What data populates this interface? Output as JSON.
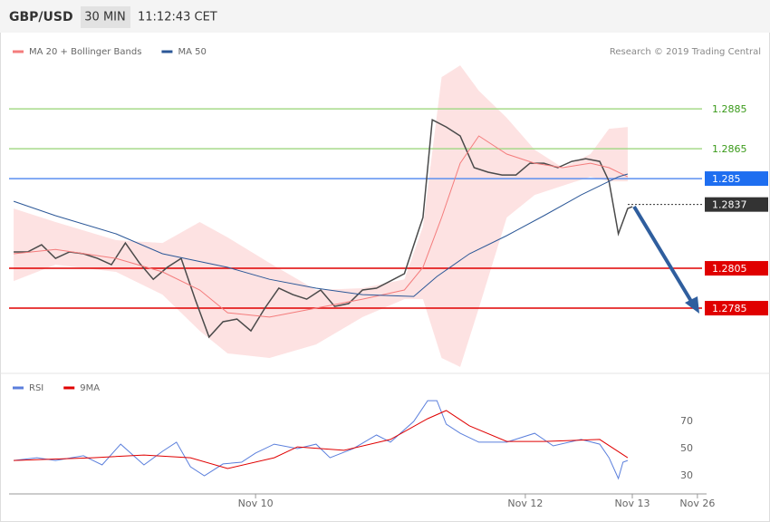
{
  "header": {
    "symbol": "GBP/USD",
    "timeframe": "30 MIN",
    "time": "11:12:43 CET"
  },
  "chart_data": [
    {
      "type": "line",
      "legend_position": "top-left",
      "credit": "Research © 2019 Trading Central",
      "xlim": [
        -1,
        148
      ],
      "ylim": [
        1.27532,
        1.29214
      ],
      "price": {
        "color": "#4a4a4a",
        "x": [
          0,
          3,
          6,
          9,
          12,
          15,
          18,
          21,
          24,
          27,
          30,
          33,
          36,
          39,
          42,
          45,
          48,
          51,
          54,
          57,
          60,
          63,
          66,
          69,
          72,
          75,
          78,
          81,
          84,
          87,
          88,
          90,
          93,
          96,
          99,
          102,
          105,
          108,
          111,
          114,
          117,
          120,
          123,
          126,
          128,
          130,
          132,
          133
        ],
        "values": [
          1.28132,
          1.28132,
          1.28168,
          1.281,
          1.28132,
          1.28123,
          1.281,
          1.28068,
          1.28177,
          1.28077,
          1.27995,
          1.28055,
          1.281,
          1.27895,
          1.27705,
          1.27782,
          1.27795,
          1.27736,
          1.2785,
          1.2795,
          1.27918,
          1.27895,
          1.27941,
          1.27859,
          1.27873,
          1.27941,
          1.2795,
          1.27986,
          1.28023,
          1.28236,
          1.28305,
          1.28795,
          1.28759,
          1.28714,
          1.28555,
          1.28532,
          1.28518,
          1.28518,
          1.28577,
          1.28577,
          1.28555,
          1.28586,
          1.286,
          1.28586,
          1.28486,
          1.28223,
          1.2835,
          1.28359
        ]
      },
      "series": [
        {
          "name": "MA 20 + Bollinger Bands",
          "color": "#f47c7c",
          "band_color": "#fde2e2",
          "x": [
            0,
            9,
            22,
            32,
            40,
            46,
            55,
            65,
            75,
            84,
            88,
            92,
            96,
            100,
            106,
            112,
            118,
            124,
            128,
            132
          ],
          "values": [
            1.28123,
            1.28145,
            1.281,
            1.28032,
            1.27941,
            1.27827,
            1.27805,
            1.2785,
            1.27895,
            1.27941,
            1.28055,
            1.28305,
            1.28577,
            1.28714,
            1.28623,
            1.28577,
            1.28555,
            1.28577,
            1.28555,
            1.28509
          ],
          "upper": [
            1.2835,
            1.28282,
            1.28191,
            1.28177,
            1.28282,
            1.28205,
            1.28077,
            1.27941,
            1.2795,
            1.27995,
            1.28259,
            1.29009,
            1.29068,
            1.28941,
            1.28805,
            1.28645,
            1.28555,
            1.28623,
            1.2875,
            1.28759
          ],
          "lower": [
            1.27986,
            1.28068,
            1.28032,
            1.27918,
            1.27736,
            1.27623,
            1.276,
            1.27668,
            1.27805,
            1.27895,
            1.27895,
            1.276,
            1.27555,
            1.2785,
            1.28305,
            1.28418,
            1.28464,
            1.28509,
            1.28486,
            1.28486
          ]
        },
        {
          "name": "MA 50",
          "color": "#2b5797",
          "x": [
            0,
            9,
            22,
            32,
            46,
            55,
            65,
            75,
            86,
            91,
            98,
            106,
            114,
            122,
            130,
            132
          ],
          "values": [
            1.28386,
            1.28314,
            1.28223,
            1.28123,
            1.28055,
            1.27995,
            1.2795,
            1.27918,
            1.27909,
            1.28009,
            1.28123,
            1.28214,
            1.28314,
            1.28418,
            1.28509,
            1.28523
          ]
        }
      ],
      "levels": [
        {
          "value": 1.2885,
          "color": "#a6d98a",
          "box": "#ffffff",
          "text_color": "#3a9a1a"
        },
        {
          "value": 1.2865,
          "color": "#a6d98a",
          "box": "#ffffff",
          "text_color": "#3a9a1a"
        },
        {
          "value": 1.285,
          "color": "#5b8ff0",
          "box": "#1e6ef0",
          "text_color": "#ffffff"
        },
        {
          "value": 1.2837,
          "color": "#333333",
          "box": "#333333",
          "text_color": "#ffffff",
          "dotted": true
        },
        {
          "value": 1.2805,
          "color": "#e00000",
          "box": "#e00000",
          "text_color": "#ffffff"
        },
        {
          "value": 1.2785,
          "color": "#e00000",
          "box": "#e00000",
          "text_color": "#ffffff"
        }
      ]
    },
    {
      "type": "line",
      "legend_position": "top-left",
      "xlim": [
        -1,
        148
      ],
      "ylim": [
        20,
        100
      ],
      "yticks": [
        30,
        50,
        70
      ],
      "xticks": [
        {
          "value": 52,
          "label": "Nov 10"
        },
        {
          "value": 110,
          "label": "Nov 12"
        },
        {
          "value": 133,
          "label": "Nov 13"
        },
        {
          "value": 147,
          "label": "Nov 26"
        }
      ],
      "series": [
        {
          "name": "RSI",
          "color": "#5b7fdc",
          "x": [
            0,
            5,
            9,
            15,
            19,
            23,
            28,
            32,
            35,
            38,
            41,
            45,
            49,
            52,
            56,
            61,
            65,
            68,
            73,
            78,
            81,
            86,
            89,
            91,
            93,
            96,
            100,
            106,
            112,
            116,
            122,
            126,
            128,
            130,
            131,
            132
          ],
          "values": [
            41.3,
            43.3,
            41.3,
            44.7,
            38,
            53.3,
            38,
            48,
            54.7,
            36.7,
            30,
            38.7,
            40,
            46.7,
            53.3,
            50,
            53.3,
            43.3,
            50,
            60,
            54.7,
            70,
            85.3,
            85.3,
            68,
            61.3,
            54.7,
            54.7,
            61.3,
            52,
            56.7,
            53.3,
            43.3,
            28,
            40,
            41.3
          ]
        },
        {
          "name": "9MA",
          "color": "#e00000",
          "x": [
            0,
            17,
            28,
            38,
            46,
            56,
            61,
            71,
            81,
            89,
            93,
            98,
            106,
            114,
            126,
            132
          ],
          "values": [
            41.3,
            43.3,
            45.3,
            43.3,
            35.3,
            43.3,
            51.3,
            48.7,
            56.7,
            72,
            78,
            66.7,
            55.3,
            55.3,
            56.7,
            43.3
          ]
        }
      ]
    }
  ]
}
